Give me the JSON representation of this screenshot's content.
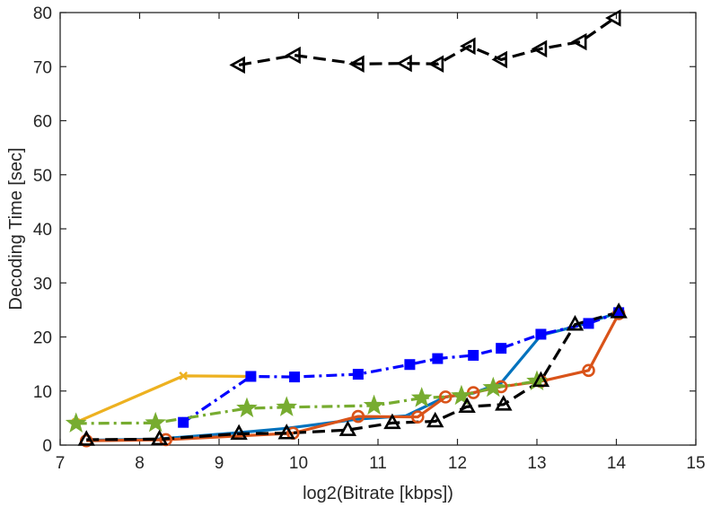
{
  "chart_data": {
    "type": "line",
    "title": "",
    "xlabel": "log2(Bitrate [kbps])",
    "ylabel": "Decoding Time [sec]",
    "xlim": [
      7,
      15
    ],
    "ylim": [
      0,
      80
    ],
    "xticks": [
      7,
      8,
      9,
      10,
      11,
      12,
      13,
      14,
      15
    ],
    "yticks": [
      0,
      10,
      20,
      30,
      40,
      50,
      60,
      70,
      80
    ],
    "grid": false,
    "legend": "none",
    "series": [
      {
        "name": "series-1",
        "color": "#0072BD",
        "line": "solid",
        "marker": "none",
        "x": [
          7.33,
          8.22,
          9.25,
          9.85,
          10.75,
          11.35,
          11.85,
          12.2,
          12.55,
          13.05,
          13.5,
          14.03
        ],
        "y": [
          0.9,
          1.1,
          2.3,
          3.1,
          4.8,
          5.4,
          8.9,
          9.6,
          11.5,
          20.3,
          22.0,
          24.5
        ]
      },
      {
        "name": "series-2",
        "color": "#D95319",
        "line": "solid",
        "marker": "circle",
        "x": [
          7.33,
          8.33,
          9.93,
          10.75,
          11.5,
          11.85,
          12.2,
          12.55,
          13.05,
          13.65,
          14.03
        ],
        "y": [
          0.8,
          1.0,
          2.2,
          5.3,
          5.2,
          8.9,
          9.7,
          10.8,
          11.8,
          13.8,
          24.3
        ]
      },
      {
        "name": "series-3",
        "color": "#EDB120",
        "line": "solid",
        "marker": "x",
        "x": [
          7.2,
          8.55,
          9.4
        ],
        "y": [
          4.2,
          12.8,
          12.7
        ]
      },
      {
        "name": "series-4",
        "color": "#0000FF",
        "line": "dashdot",
        "marker": "square",
        "x": [
          8.55,
          9.4,
          9.95,
          10.75,
          11.4,
          11.75,
          12.2,
          12.55,
          13.05,
          13.65,
          14.03
        ],
        "y": [
          4.2,
          12.7,
          12.6,
          13.1,
          14.9,
          16.0,
          16.6,
          17.9,
          20.5,
          22.5,
          24.5
        ]
      },
      {
        "name": "series-5",
        "color": "#77AC30",
        "line": "dashdot",
        "marker": "star",
        "x": [
          7.2,
          8.2,
          9.35,
          9.85,
          10.95,
          11.55,
          12.05,
          12.45,
          13.0
        ],
        "y": [
          4.0,
          4.1,
          6.8,
          7.0,
          7.3,
          8.7,
          9.1,
          10.6,
          11.8
        ]
      },
      {
        "name": "series-6",
        "color": "#000000",
        "line": "dashed",
        "marker": "triangle-up",
        "x": [
          7.33,
          8.25,
          9.25,
          9.85,
          10.62,
          11.18,
          11.72,
          12.12,
          12.58,
          13.05,
          13.48,
          14.03
        ],
        "y": [
          1.0,
          1.1,
          2.1,
          2.2,
          2.8,
          4.1,
          4.4,
          7.1,
          7.5,
          11.9,
          22.3,
          24.6
        ]
      },
      {
        "name": "series-7",
        "color": "#000000",
        "line": "dashed",
        "marker": "triangle-left",
        "x": [
          9.25,
          9.95,
          10.75,
          11.35,
          11.75,
          12.15,
          12.55,
          13.05,
          13.55,
          13.98
        ],
        "y": [
          70.3,
          72.1,
          70.5,
          70.6,
          70.5,
          73.8,
          71.3,
          73.3,
          74.6,
          79.0
        ]
      }
    ]
  }
}
